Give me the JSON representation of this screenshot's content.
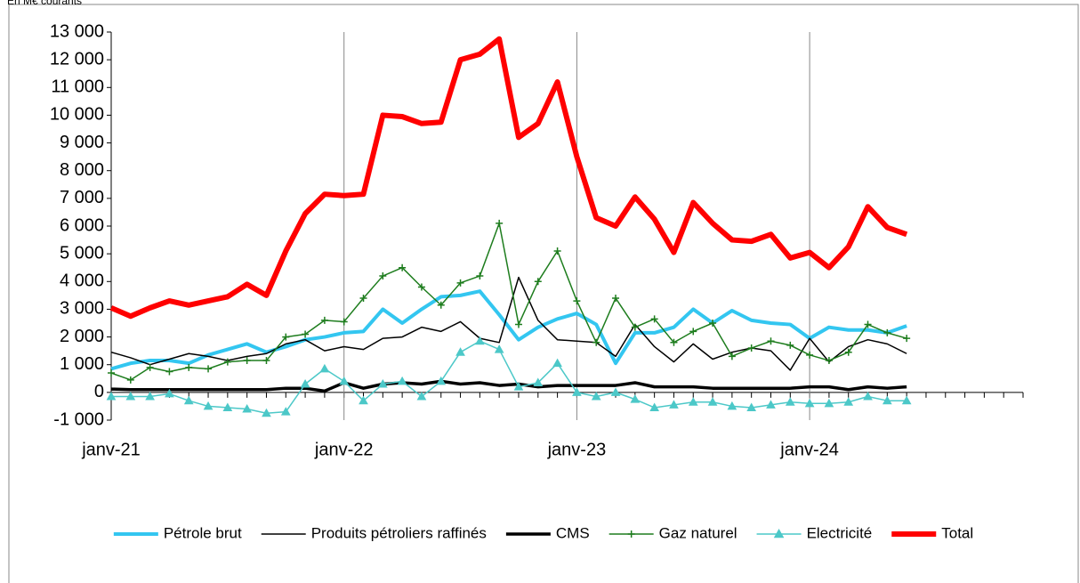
{
  "chart_data": {
    "type": "line",
    "title": "En M€ courants",
    "categories": [
      "janv-21",
      null,
      null,
      null,
      null,
      null,
      null,
      null,
      null,
      null,
      null,
      null,
      "janv-22",
      null,
      null,
      null,
      null,
      null,
      null,
      null,
      null,
      null,
      null,
      null,
      "janv-23",
      null,
      null,
      null,
      null,
      null,
      null,
      null,
      null,
      null,
      null,
      null,
      "janv-24",
      null,
      null,
      null,
      null,
      null,
      null,
      null,
      null,
      null,
      null,
      null
    ],
    "ylim": [
      -1000,
      13000
    ],
    "yticks": [
      {
        "value": -1000,
        "label": "-1 000"
      },
      0,
      {
        "value": 1000,
        "label": "1 000"
      },
      {
        "value": 2000,
        "label": "2 000"
      },
      {
        "value": 3000,
        "label": "3 000"
      },
      {
        "value": 4000,
        "label": "4 000"
      },
      {
        "value": 5000,
        "label": "5 000"
      },
      {
        "value": 6000,
        "label": "6 000"
      },
      {
        "value": 7000,
        "label": "7 000"
      },
      {
        "value": 8000,
        "label": "8 000"
      },
      {
        "value": 9000,
        "label": "9 000"
      },
      {
        "value": 10000,
        "label": "10 000"
      },
      {
        "value": 11000,
        "label": "11 000"
      },
      {
        "value": 12000,
        "label": "12 000"
      },
      {
        "value": 13000,
        "label": "13 000"
      }
    ],
    "grid": "x",
    "legend": "bottom",
    "series": [
      {
        "name": "Pétrole brut",
        "color": "#33c6f0",
        "width": 4,
        "marker": "none",
        "values": [
          850,
          1050,
          1150,
          1150,
          1050,
          1350,
          1550,
          1750,
          1450,
          1650,
          1900,
          2000,
          2150,
          2200,
          3000,
          2500,
          3000,
          3450,
          3500,
          3650,
          2800,
          1900,
          2350,
          2650,
          2850,
          2450,
          1050,
          2150,
          2150,
          2350,
          3000,
          2500,
          2950,
          2600,
          2500,
          2450,
          1950,
          2350,
          2250,
          2250,
          2150,
          2400,
          null,
          null,
          null,
          null,
          null,
          null
        ]
      },
      {
        "name": "Produits pétroliers raffinés",
        "color": "#000000",
        "width": 1.5,
        "marker": "none",
        "values": [
          1450,
          1250,
          1000,
          1200,
          1400,
          1300,
          1150,
          1300,
          1400,
          1750,
          1900,
          1500,
          1650,
          1550,
          1950,
          2000,
          2350,
          2200,
          2550,
          1950,
          1800,
          4150,
          2600,
          1900,
          1850,
          1800,
          1300,
          2450,
          1650,
          1100,
          1750,
          1200,
          1450,
          1600,
          1500,
          800,
          1950,
          1100,
          1650,
          1900,
          1750,
          1400,
          null,
          null,
          null,
          null,
          null,
          null
        ]
      },
      {
        "name": "CMS",
        "color": "#000000",
        "width": 3.5,
        "marker": "none",
        "values": [
          120,
          100,
          100,
          100,
          100,
          100,
          100,
          100,
          100,
          150,
          150,
          50,
          350,
          150,
          300,
          350,
          300,
          400,
          300,
          350,
          250,
          300,
          200,
          250,
          250,
          250,
          250,
          350,
          200,
          200,
          200,
          150,
          150,
          150,
          150,
          150,
          200,
          200,
          100,
          200,
          150,
          200,
          null,
          null,
          null,
          null,
          null,
          null
        ]
      },
      {
        "name": "Gaz naturel",
        "color": "#1e7d1e",
        "width": 1.5,
        "marker": "plus",
        "values": [
          700,
          450,
          900,
          750,
          900,
          850,
          1100,
          1150,
          1150,
          2000,
          2100,
          2600,
          2550,
          3400,
          4200,
          4500,
          3800,
          3150,
          3950,
          4200,
          6100,
          2450,
          4000,
          5100,
          3300,
          1800,
          3400,
          2350,
          2650,
          1800,
          2200,
          2500,
          1300,
          1600,
          1850,
          1700,
          1350,
          1150,
          1450,
          2450,
          2150,
          1950,
          null,
          null,
          null,
          null,
          null,
          null
        ]
      },
      {
        "name": "Electricité",
        "color": "#4cc8c8",
        "width": 1.5,
        "marker": "triangle",
        "values": [
          -150,
          -150,
          -150,
          -50,
          -300,
          -500,
          -550,
          -600,
          -750,
          -700,
          300,
          850,
          400,
          -300,
          300,
          400,
          -150,
          400,
          1450,
          1850,
          1550,
          200,
          350,
          1050,
          0,
          -150,
          0,
          -250,
          -550,
          -450,
          -350,
          -350,
          -500,
          -550,
          -450,
          -350,
          -400,
          -400,
          -350,
          -150,
          -300,
          -300,
          null,
          null,
          null,
          null,
          null,
          null
        ]
      },
      {
        "name": "Total",
        "color": "#ff0000",
        "width": 6,
        "marker": "none",
        "values": [
          3050,
          2750,
          3050,
          3300,
          3150,
          3300,
          3450,
          3900,
          3500,
          5100,
          6450,
          7150,
          7100,
          7150,
          10000,
          9950,
          9700,
          9750,
          12000,
          12200,
          12750,
          9200,
          9700,
          11200,
          8500,
          6300,
          6000,
          7050,
          6250,
          5050,
          6850,
          6100,
          5500,
          5450,
          5700,
          4850,
          5050,
          4500,
          5250,
          6700,
          5950,
          5700,
          null,
          null,
          null,
          null,
          null,
          null
        ]
      }
    ]
  }
}
